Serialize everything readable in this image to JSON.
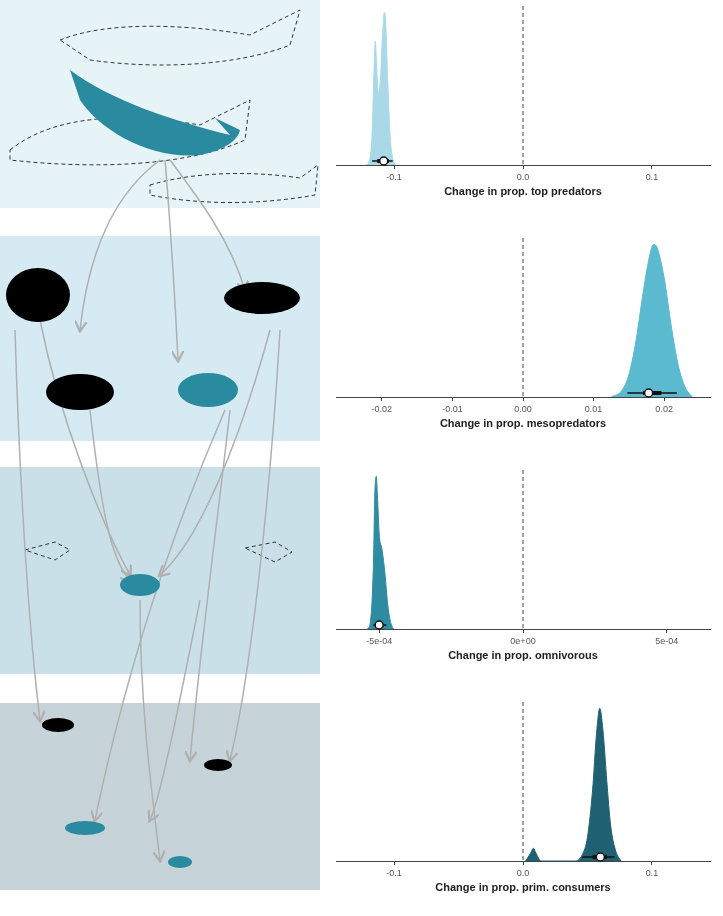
{
  "chart_data": [
    {
      "type": "area",
      "xlabel": "Change in prop. top predators",
      "color": "#a9d9e8",
      "x": [
        -0.122,
        -0.119,
        -0.117,
        -0.1155,
        -0.1145,
        -0.1135,
        -0.112,
        -0.1105,
        -0.109,
        -0.1075,
        -0.1065,
        -0.105,
        -0.103,
        -0.101,
        -0.099
      ],
      "values": [
        0,
        3,
        20,
        60,
        78,
        62,
        45,
        55,
        80,
        96,
        90,
        55,
        18,
        4,
        0
      ],
      "xlim": [
        -0.145,
        0.145
      ],
      "xticks": [
        -0.1,
        {
          "value": 0,
          "label": "0.0"
        },
        0.1
      ],
      "ylim": [
        0,
        100
      ],
      "tick_labels": "x",
      "grid": false,
      "vline": 0,
      "median": -0.108,
      "interval_66": [
        -0.113,
        -0.104
      ],
      "interval_95": [
        -0.117,
        -0.101
      ]
    },
    {
      "type": "area",
      "xlabel": "Change in prop. mesopredators",
      "color": "#5bbad0",
      "x": [
        0.0125,
        0.014,
        0.015,
        0.016,
        0.017,
        0.018,
        0.0185,
        0.019,
        0.02,
        0.021,
        0.022,
        0.023,
        0.024
      ],
      "values": [
        0,
        4,
        14,
        35,
        65,
        90,
        96,
        94,
        75,
        45,
        20,
        6,
        0
      ],
      "xlim": [
        -0.0265,
        0.0265
      ],
      "xticks": [
        -0.02,
        -0.01,
        {
          "value": 0,
          "label": "0.00"
        },
        0.01,
        0.02
      ],
      "ylim": [
        0,
        100
      ],
      "tick_labels": "x",
      "grid": false,
      "vline": 0,
      "median": 0.0178,
      "interval_66": [
        0.017,
        0.0196
      ],
      "interval_95": [
        0.0148,
        0.0218
      ]
    },
    {
      "type": "area",
      "xlabel": "Change in prop. omnivorous",
      "color": "#2e8ba1",
      "x": [
        -0.00054,
        -0.00053,
        -0.00052,
        -0.000515,
        -0.00051,
        -0.000505,
        -0.0005,
        -0.00049,
        -0.00048,
        -0.00047,
        -0.00046,
        -0.00045
      ],
      "values": [
        0,
        5,
        40,
        85,
        96,
        80,
        60,
        50,
        35,
        15,
        4,
        0
      ],
      "xlim": [
        -0.00065,
        0.00065
      ],
      "xticks": [
        {
          "value": -0.0005,
          "label": "-5e-04"
        },
        {
          "value": 0,
          "label": "0e+00"
        },
        {
          "value": 0.0005,
          "label": "5e-04"
        }
      ],
      "ylim": [
        0,
        100
      ],
      "tick_labels": "x",
      "grid": false,
      "vline": 0,
      "median": -0.0005,
      "interval_66": [
        -0.00051,
        -0.00049
      ],
      "interval_95": [
        -0.00052,
        -0.000475
      ]
    },
    {
      "type": "area",
      "xlabel": "Change in prop. prim. consumers",
      "color": "#1f6072",
      "x": [
        0.002,
        0.006,
        0.008,
        0.01,
        0.014,
        0.04,
        0.046,
        0.05,
        0.054,
        0.057,
        0.0595,
        0.062,
        0.065,
        0.068,
        0.072,
        0.076
      ],
      "values": [
        0,
        5,
        8,
        5,
        0,
        0,
        4,
        15,
        45,
        80,
        96,
        82,
        50,
        22,
        6,
        0
      ],
      "xlim": [
        -0.145,
        0.145
      ],
      "xticks": [
        -0.1,
        {
          "value": 0,
          "label": "0.0"
        },
        0.1
      ],
      "ylim": [
        0,
        100
      ],
      "tick_labels": "x",
      "grid": false,
      "vline": 0,
      "median": 0.06,
      "interval_66": [
        0.054,
        0.065
      ],
      "interval_95": [
        0.046,
        0.071
      ]
    }
  ]
}
